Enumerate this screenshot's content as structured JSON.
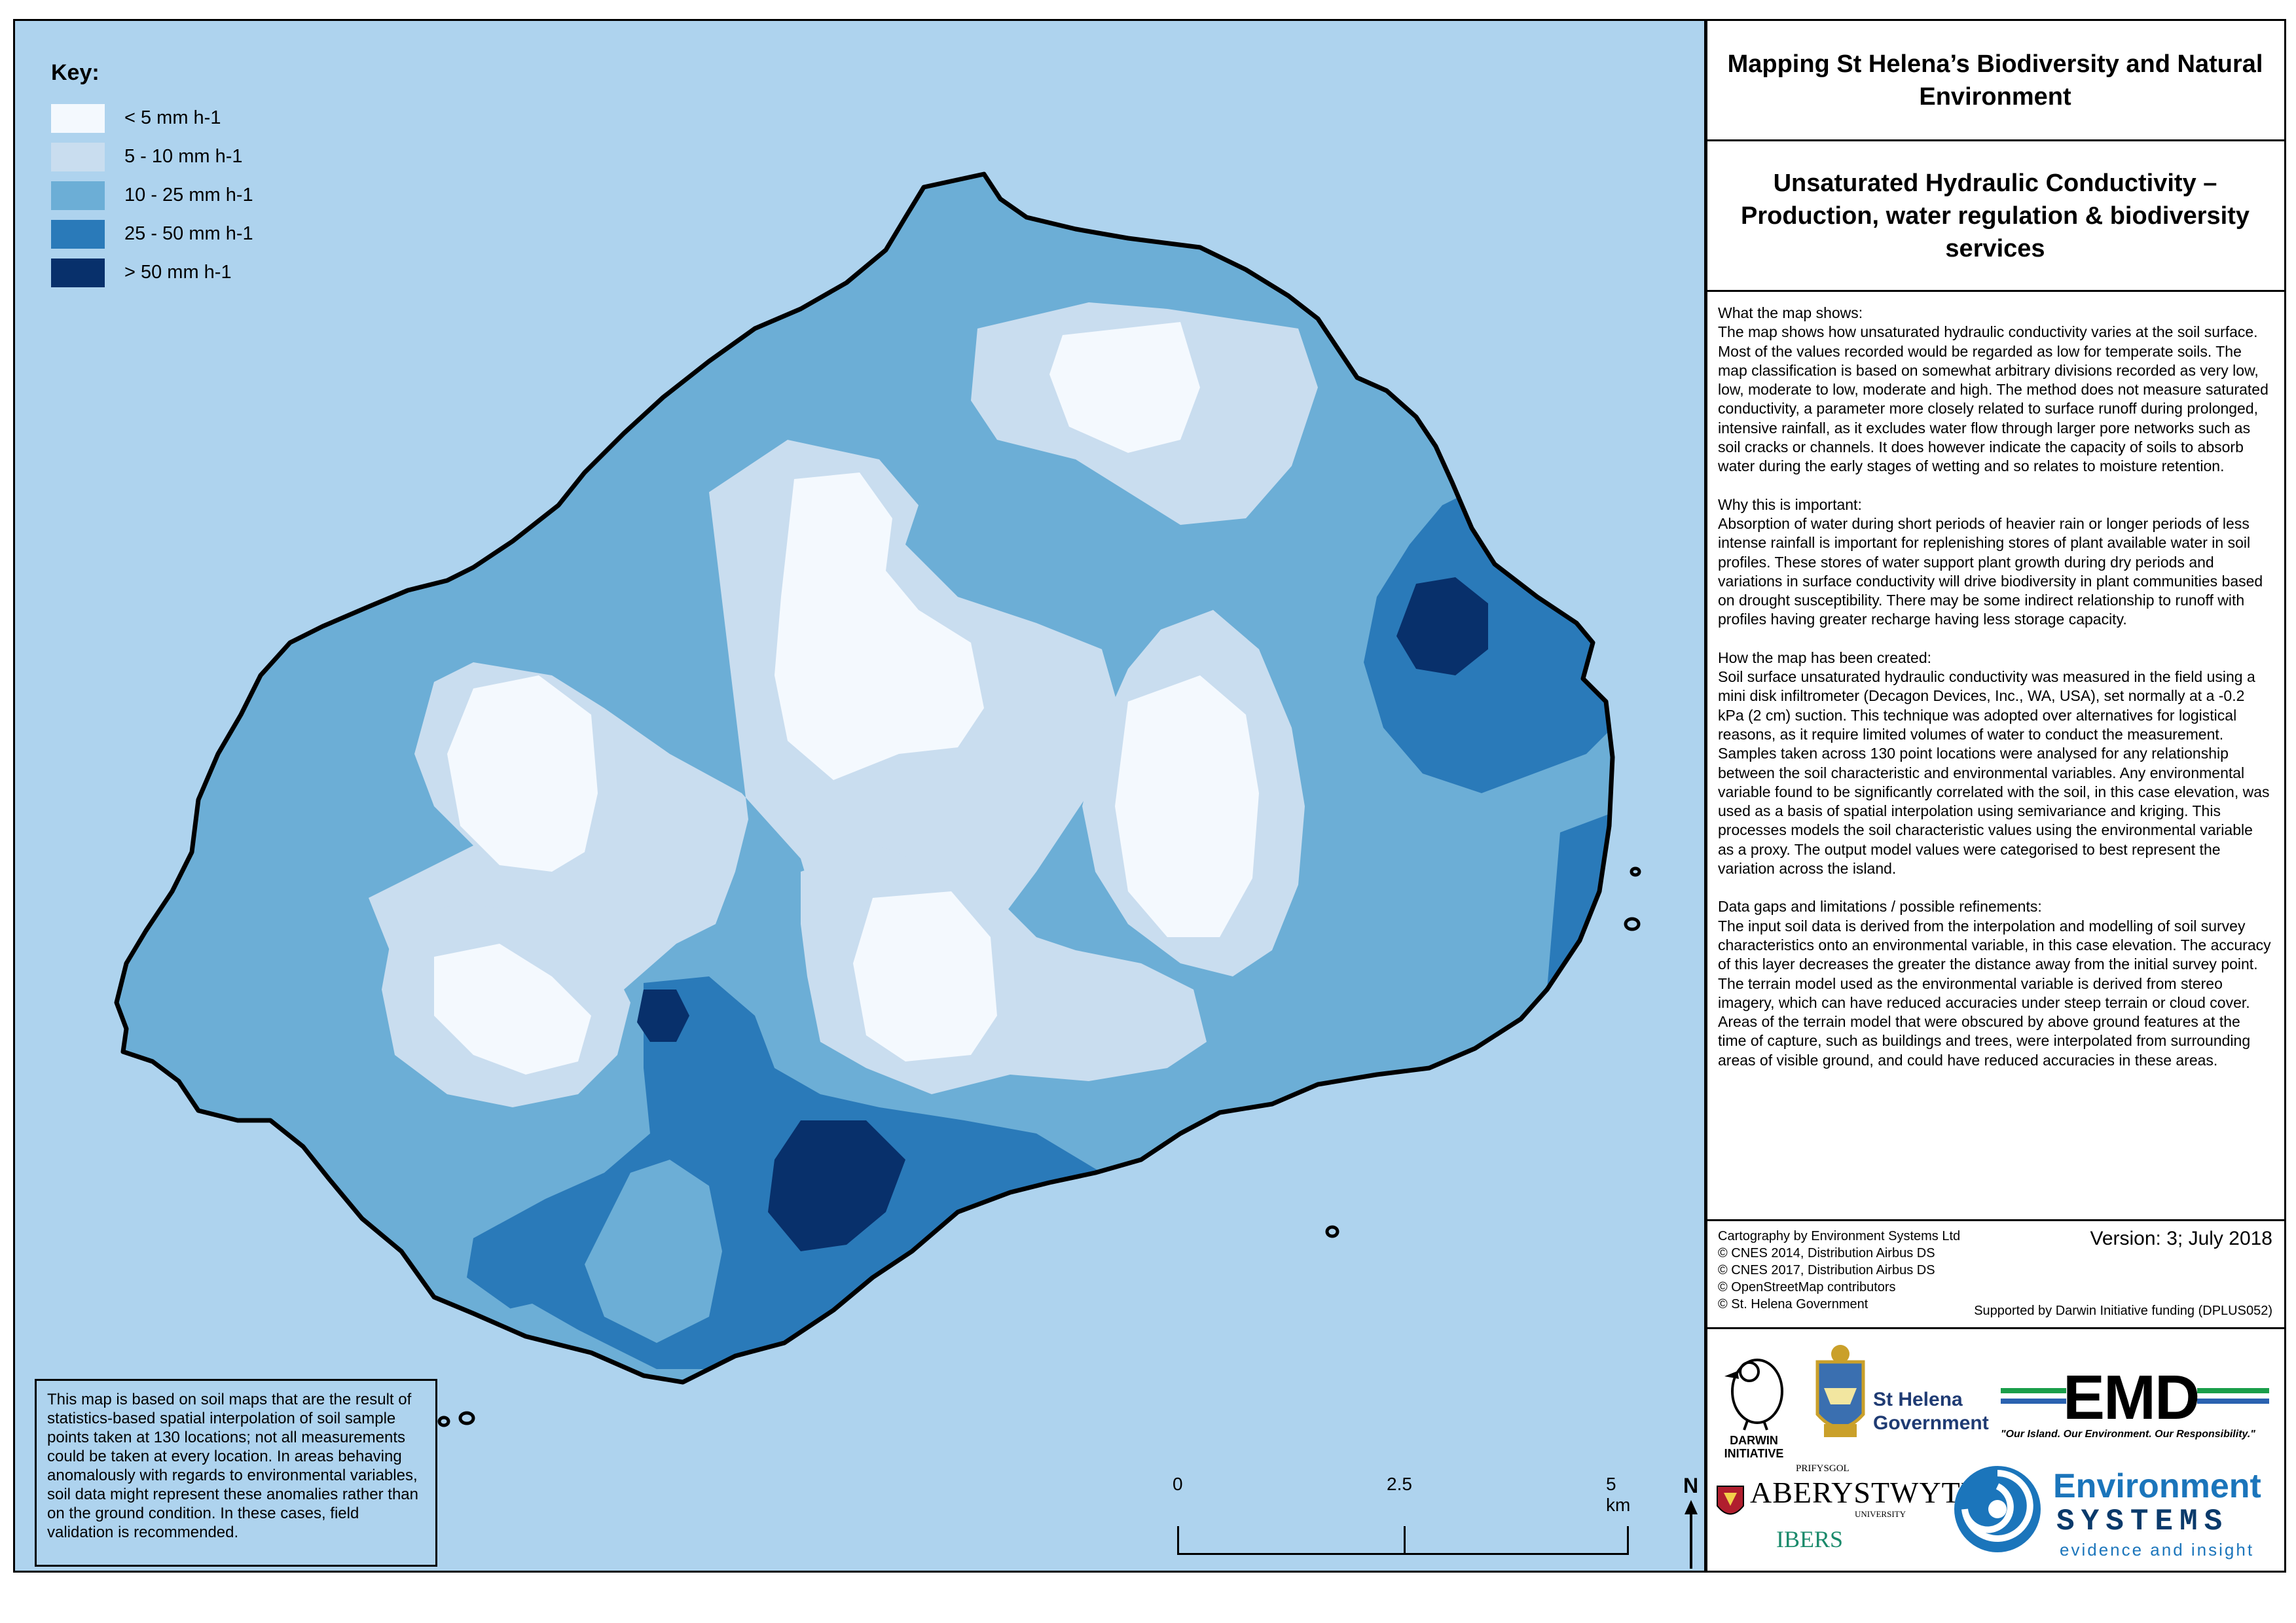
{
  "key": {
    "title": "Key:",
    "classes": [
      {
        "label": "< 5 mm h-1",
        "color": "#f4f9fe"
      },
      {
        "label": "5 - 10 mm h-1",
        "color": "#c9ddef"
      },
      {
        "label": "10 - 25 mm h-1",
        "color": "#6caed6"
      },
      {
        "label": "25 - 50 mm h-1",
        "color": "#2a7ab9"
      },
      {
        "label": "> 50 mm h-1",
        "color": "#08306b"
      }
    ]
  },
  "colors": {
    "sea": "#aed3ee",
    "coast": "#000000"
  },
  "disclaimer": "This map is based on soil maps that are the result of statistics-based spatial interpolation of soil sample points taken at 130 locations; not all measurements could be taken at every location. In areas behaving anomalously with regards to environmental variables, soil data might represent these anomalies rather than on the ground condition. In these cases, field validation is recommended.",
  "scale": {
    "ticks": [
      "0",
      "2.5",
      "5 km"
    ]
  },
  "north": "N",
  "panel": {
    "title": "Mapping St Helena’s Biodiversity and Natural Environment",
    "subtitle": "Unsaturated Hydraulic Conductivity – Production, water regulation & biodiversity services",
    "sections": [
      {
        "heading": "What the map shows:",
        "paragraphs": [
          "The map shows how unsaturated hydraulic conductivity varies at the soil surface. Most of the values recorded would be regarded as low for temperate soils. The map classification is based on somewhat arbitrary divisions recorded as very low, low, moderate to low, moderate and high. The method does not measure saturated conductivity, a parameter more closely related to surface runoff during prolonged, intensive rainfall, as it excludes water flow through larger pore networks such as soil cracks or channels. It does however indicate the capacity of soils to absorb water during the early stages of wetting and so relates to moisture retention."
        ]
      },
      {
        "heading": "Why this is important:",
        "paragraphs": [
          "Absorption of water during short periods of heavier rain or longer periods of less intense rainfall is important for replenishing stores of plant available water in soil profiles. These stores of water support plant growth during dry periods and variations in surface conductivity will drive biodiversity in plant communities based on drought susceptibility. There may be some indirect relationship to runoff with profiles having greater recharge having less storage capacity."
        ]
      },
      {
        "heading": "How the map has been created:",
        "paragraphs": [
          "Soil surface unsaturated hydraulic conductivity was measured in the field using a mini disk infiltrometer (Decagon Devices, Inc., WA, USA), set normally at a -0.2 kPa (2 cm) suction. This technique was adopted over alternatives for logistical reasons, as it require limited volumes of water to conduct the measurement.",
          "Samples taken across 130 point locations were analysed for any relationship between the soil characteristic and environmental variables. Any environmental variable found to be significantly correlated with the soil, in this case elevation, was used as a basis of spatial interpolation using semivariance and kriging. This processes models the soil characteristic values using the environmental variable as a proxy. The output model values were categorised to best represent the variation across the island."
        ]
      },
      {
        "heading": "Data gaps and limitations / possible refinements:",
        "paragraphs": [
          "The input soil data is derived from the interpolation and modelling of soil survey characteristics onto an environmental variable, in this case elevation. The accuracy of this layer decreases the greater the distance away from the initial survey point.",
          "The terrain model used as the environmental variable is derived from stereo imagery, which can have reduced accuracies under steep terrain or cloud cover. Areas of the terrain model that were obscured by above ground features at the time of capture, such as buildings and trees, were interpolated from surrounding areas of visible ground, and could have reduced accuracies in these areas."
        ]
      }
    ],
    "credits": {
      "lines": [
        "Cartography by Environment Systems Ltd",
        "© CNES 2014, Distribution Airbus DS",
        "© CNES 2017, Distribution Airbus DS",
        "© OpenStreetMap contributors",
        "© St. Helena Government"
      ],
      "version": "Version: 3; July 2018",
      "support": "Supported by Darwin Initiative funding (DPLUS052)"
    },
    "logos": {
      "darwin": "DARWIN INITIATIVE",
      "sthelena": [
        "St Helena",
        "Government"
      ],
      "emd": "EMD",
      "emd_tagline": "\"Our Island. Our Environment. Our Responsibility.\"",
      "prifysgol": "PRIFYSGOL",
      "aber": "ABERYSTWYTH",
      "university": "UNIVERSITY",
      "ibers": "IBERS",
      "env1": "Environment",
      "env2": "SYSTEMS",
      "env3": "evidence and insight"
    }
  }
}
